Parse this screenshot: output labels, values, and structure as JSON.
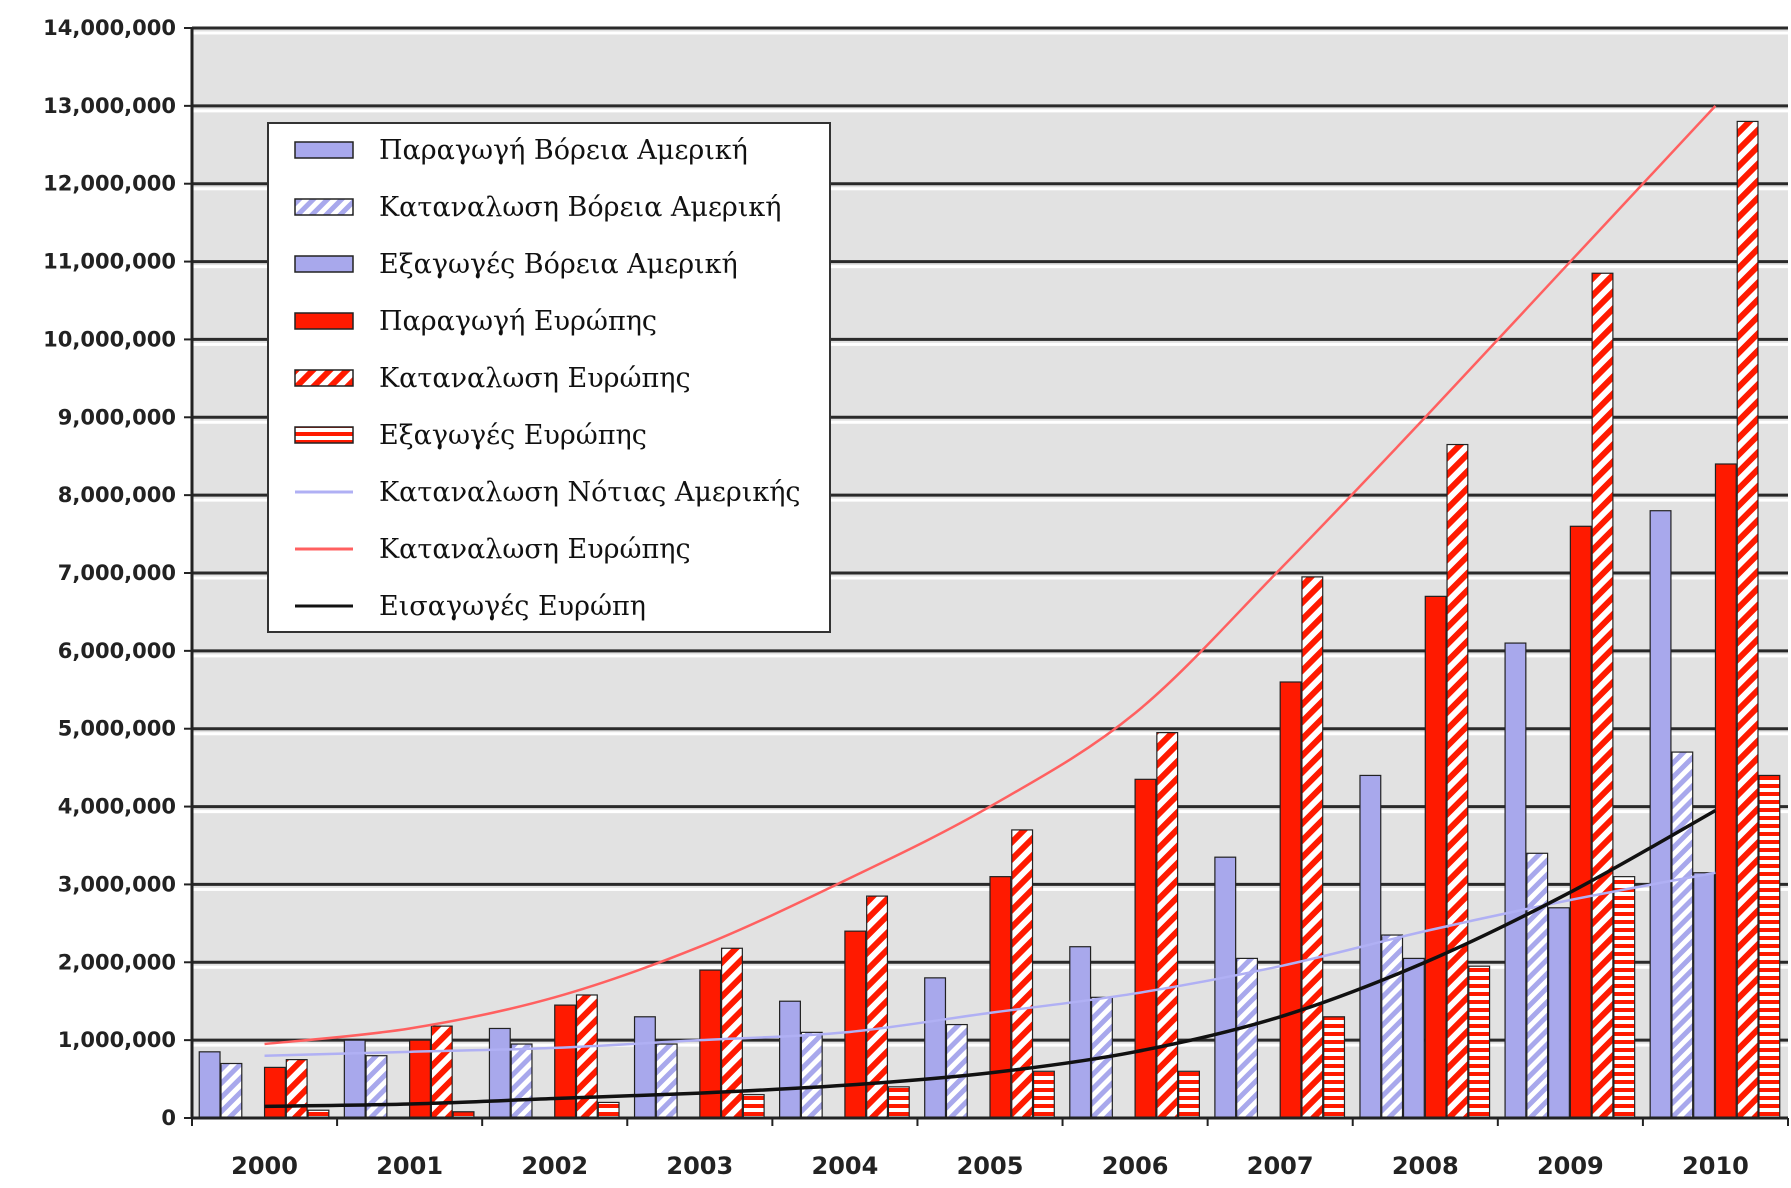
{
  "chart_data": {
    "type": "bar",
    "title": "",
    "xlabel": "",
    "ylabel": "",
    "ylim": [
      0,
      14000000
    ],
    "yticks": [
      0,
      1000000,
      2000000,
      3000000,
      4000000,
      5000000,
      6000000,
      7000000,
      8000000,
      9000000,
      10000000,
      11000000,
      12000000,
      13000000,
      14000000
    ],
    "ytick_labels": [
      "0",
      "1,000,000",
      "2,000,000",
      "3,000,000",
      "4,000,000",
      "5,000,000",
      "6,000,000",
      "7,000,000",
      "8,000,000",
      "9,000,000",
      "10,000,000",
      "11,000,000",
      "12,000,000",
      "13,000,000",
      "14,000,000"
    ],
    "categories": [
      "2000",
      "2001",
      "2002",
      "2003",
      "2004",
      "2005",
      "2006",
      "2007",
      "2008",
      "2009",
      "2010"
    ],
    "grid": true,
    "legend_position": "top-left",
    "series": [
      {
        "name": "Παραγωγή Βόρεια Αμερική",
        "kind": "bar",
        "style": "solid",
        "color": "#a8a8ec",
        "values": [
          850000,
          1000000,
          1150000,
          1300000,
          1500000,
          1800000,
          2200000,
          3350000,
          4400000,
          6100000,
          7800000
        ]
      },
      {
        "name": "Καταναλωση Βόρεια Αμερική",
        "kind": "bar",
        "style": "diagonal",
        "color": "#a8a8ec",
        "values": [
          700000,
          800000,
          950000,
          950000,
          1100000,
          1200000,
          1550000,
          2050000,
          2350000,
          3400000,
          4700000
        ]
      },
      {
        "name": "Εξαγωγές Βόρεια Αμερική",
        "kind": "bar",
        "style": "solid",
        "color": "#a8a8ec",
        "values": [
          0,
          0,
          0,
          0,
          0,
          0,
          0,
          0,
          2050000,
          2700000,
          3150000
        ]
      },
      {
        "name": "Παραγωγή Ευρώπης",
        "kind": "bar",
        "style": "solid",
        "color": "#ff1a00",
        "values": [
          650000,
          1000000,
          1450000,
          1900000,
          2400000,
          3100000,
          4350000,
          5600000,
          6700000,
          7600000,
          8400000
        ]
      },
      {
        "name": "Καταναλωση Ευρώπης",
        "kind": "bar",
        "style": "diagonal",
        "color": "#ff1a00",
        "values": [
          750000,
          1180000,
          1580000,
          2180000,
          2850000,
          3700000,
          4950000,
          6950000,
          8650000,
          10850000,
          12800000
        ]
      },
      {
        "name": "Εξαγωγές Ευρώπης",
        "kind": "bar",
        "style": "horizontal",
        "color": "#ff1a00",
        "values": [
          100000,
          80000,
          200000,
          300000,
          400000,
          600000,
          600000,
          1300000,
          1950000,
          3100000,
          4400000
        ]
      },
      {
        "name": "Καταναλωση Νότιας Αμερικής",
        "kind": "line",
        "color": "#b0b0f4",
        "values": [
          800000,
          850000,
          900000,
          1000000,
          1100000,
          1350000,
          1600000,
          1950000,
          2400000,
          2800000,
          3150000
        ]
      },
      {
        "name": "Καταναλωση Ευρώπης",
        "kind": "line",
        "color": "#ff6060",
        "values": [
          950000,
          1150000,
          1550000,
          2200000,
          3050000,
          4000000,
          5200000,
          7050000,
          9000000,
          11000000,
          13000000
        ]
      },
      {
        "name": "Εισαγωγές Ευρώπη",
        "kind": "line",
        "color": "#111111",
        "values": [
          150000,
          180000,
          250000,
          320000,
          420000,
          580000,
          850000,
          1300000,
          2000000,
          2900000,
          3950000
        ]
      }
    ]
  },
  "legend": {
    "items": [
      {
        "label": "Παραγωγή Βόρεια Αμερική",
        "swatch": "bar-solid-blue"
      },
      {
        "label": "Καταναλωση Βόρεια Αμερική",
        "swatch": "bar-diagonal-blue"
      },
      {
        "label": "Εξαγωγές Βόρεια Αμερική",
        "swatch": "bar-solid-blue"
      },
      {
        "label": "Παραγωγή Ευρώπης",
        "swatch": "bar-solid-red"
      },
      {
        "label": "Καταναλωση Ευρώπης",
        "swatch": "bar-diagonal-red"
      },
      {
        "label": "Εξαγωγές Ευρώπης",
        "swatch": "bar-horizontal-red"
      },
      {
        "label": "Καταναλωση Νότιας Αμερικής",
        "swatch": "line-lightblue"
      },
      {
        "label": "Καταναλωση Ευρώπης",
        "swatch": "line-red"
      },
      {
        "label": "Εισαγωγές Ευρώπη",
        "swatch": "line-black"
      }
    ]
  }
}
